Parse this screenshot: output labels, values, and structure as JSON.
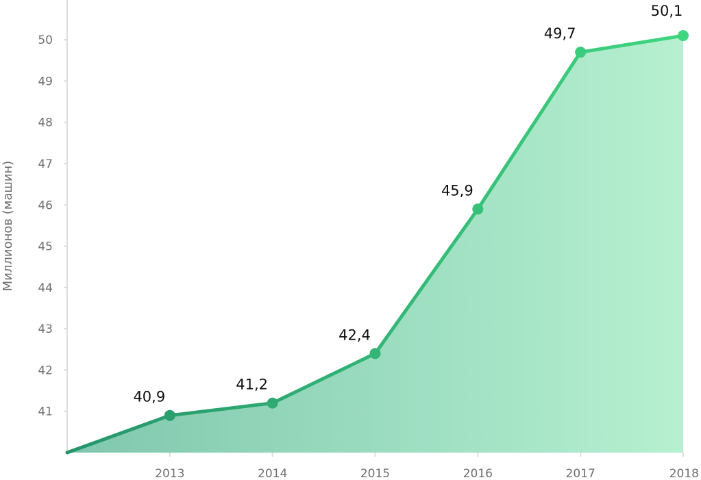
{
  "chart_data": {
    "type": "area",
    "ylabel": "Миллионов (машин)",
    "x_tick_labels": [
      "2013",
      "2014",
      "2015",
      "2016",
      "2017",
      "2018"
    ],
    "y_tick_labels": [
      "41",
      "42",
      "43",
      "44",
      "45",
      "46",
      "47",
      "48",
      "49",
      "50"
    ],
    "ylim": [
      40,
      50.3
    ],
    "grid": false,
    "series": [
      {
        "x": [
          2012,
          2013,
          2014,
          2015,
          2016,
          2017,
          2018
        ],
        "values": [
          40.0,
          40.9,
          41.2,
          42.4,
          45.9,
          49.7,
          50.1
        ],
        "data_labels": [
          "",
          "40,9",
          "41,2",
          "42,4",
          "45,9",
          "49,7",
          "50,1"
        ]
      }
    ],
    "colors": {
      "line_start": "#25946b",
      "line_end": "#3fd67f",
      "fill_start": "#7fc7ae",
      "fill_end": "#b6f0d0",
      "axis": "#dddddd",
      "tick_text": "#6f6f6f",
      "label_text": "#111111"
    }
  }
}
